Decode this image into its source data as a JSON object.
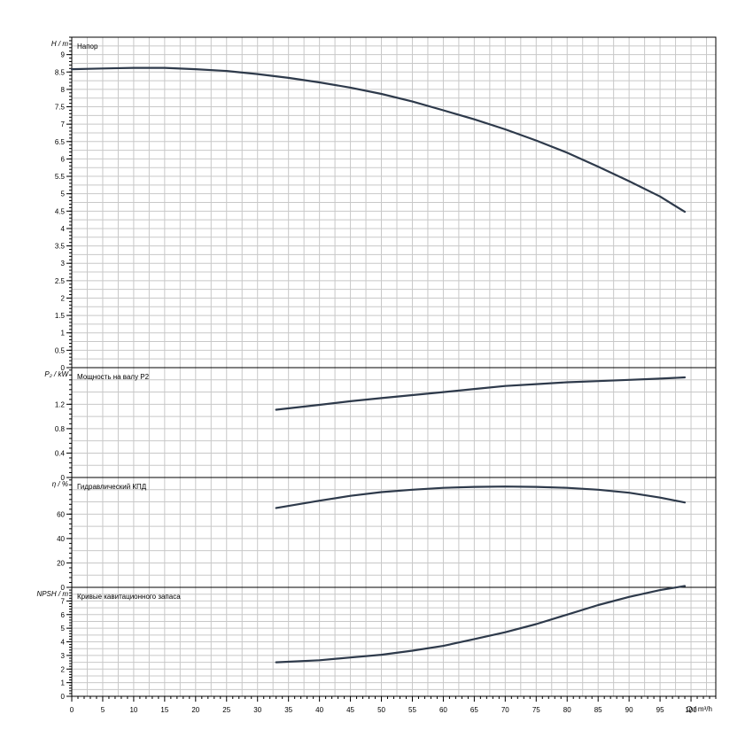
{
  "colors": {
    "curve": "#2e3a4b",
    "grid": "#c8c8c8",
    "frame": "#000000",
    "background": "#ffffff"
  },
  "x_axis": {
    "label": "Q / m³/h",
    "ticks": [
      "0",
      "5",
      "10",
      "15",
      "20",
      "25",
      "30",
      "35",
      "40",
      "45",
      "50",
      "55",
      "60",
      "65",
      "70",
      "75",
      "80",
      "85",
      "90",
      "95",
      "100"
    ],
    "range": [
      0,
      104
    ]
  },
  "chart_data": [
    {
      "type": "line",
      "title": "Напор",
      "ylabel": "H / m",
      "ylim": [
        0,
        9.5
      ],
      "y_ticks": [
        "0",
        "0.5",
        "1",
        "1.5",
        "2",
        "2.5",
        "3",
        "3.5",
        "4",
        "4.5",
        "5",
        "5.5",
        "6",
        "6.5",
        "7",
        "7.5",
        "8",
        "8.5",
        "9"
      ],
      "grid": true,
      "series": [
        {
          "x": [
            0,
            5,
            10,
            15,
            20,
            25,
            30,
            35,
            40,
            45,
            50,
            55,
            60,
            65,
            70,
            75,
            80,
            85,
            90,
            95,
            99
          ],
          "y": [
            8.58,
            8.6,
            8.62,
            8.62,
            8.58,
            8.53,
            8.44,
            8.33,
            8.2,
            8.05,
            7.87,
            7.65,
            7.4,
            7.14,
            6.85,
            6.53,
            6.18,
            5.78,
            5.36,
            4.92,
            4.48
          ]
        }
      ]
    },
    {
      "type": "line",
      "title": "Мощность на валу P2",
      "ylabel": "P₂ / kW",
      "ylim": [
        0,
        1.8
      ],
      "y_ticks": [
        "0",
        "0.4",
        "0.8",
        "1.2"
      ],
      "grid": true,
      "series": [
        {
          "x": [
            33,
            40,
            45,
            50,
            55,
            60,
            65,
            70,
            75,
            80,
            85,
            90,
            95,
            99
          ],
          "y": [
            1.11,
            1.19,
            1.25,
            1.3,
            1.35,
            1.4,
            1.45,
            1.5,
            1.53,
            1.56,
            1.58,
            1.6,
            1.62,
            1.64
          ]
        }
      ]
    },
    {
      "type": "line",
      "title": "Гидравлический КПД",
      "ylabel": "η / %",
      "ylim": [
        0,
        90
      ],
      "y_ticks": [
        "0",
        "20",
        "40",
        "60"
      ],
      "grid": true,
      "series": [
        {
          "x": [
            33,
            40,
            45,
            50,
            55,
            60,
            65,
            70,
            75,
            80,
            85,
            90,
            95,
            99
          ],
          "y": [
            65,
            71,
            75,
            78,
            80,
            81.5,
            82.3,
            82.6,
            82.3,
            81.5,
            80,
            77.5,
            73.5,
            69.5
          ]
        }
      ]
    },
    {
      "type": "line",
      "title": "Кривые кавитационного запаса",
      "ylabel": "NPSH / m",
      "ylim": [
        0,
        8
      ],
      "y_ticks": [
        "0",
        "1",
        "2",
        "3",
        "4",
        "5",
        "6",
        "7"
      ],
      "grid": true,
      "series": [
        {
          "x": [
            33,
            40,
            45,
            50,
            55,
            60,
            65,
            70,
            75,
            80,
            85,
            90,
            95,
            99
          ],
          "y": [
            2.5,
            2.65,
            2.85,
            3.05,
            3.35,
            3.7,
            4.2,
            4.7,
            5.3,
            6.0,
            6.7,
            7.3,
            7.8,
            8.1
          ]
        }
      ]
    }
  ]
}
